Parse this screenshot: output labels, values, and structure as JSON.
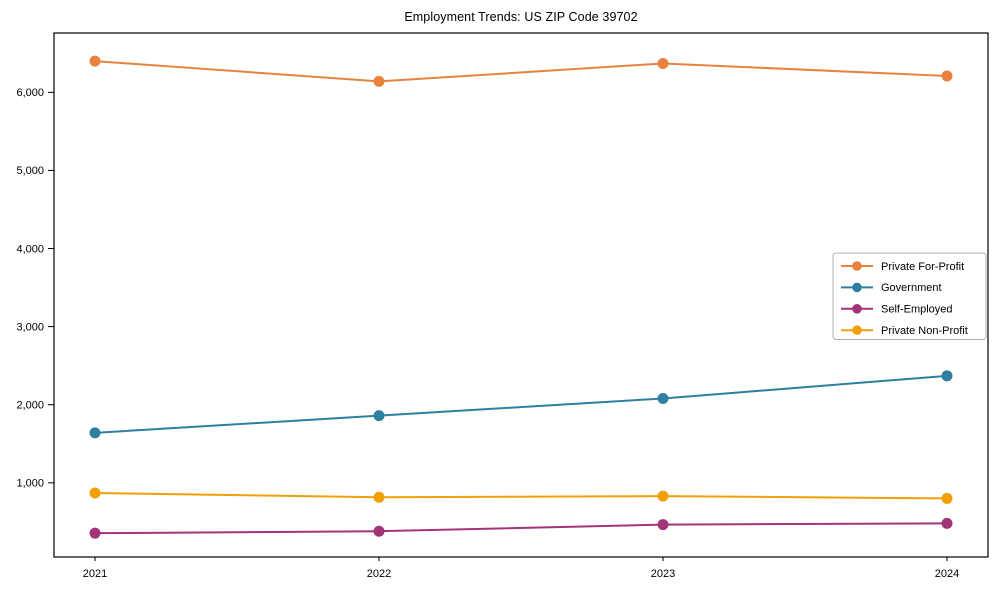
{
  "chart_data": {
    "type": "line",
    "title": "Employment Trends: US ZIP Code 39702",
    "x": [
      "2021",
      "2022",
      "2023",
      "2024"
    ],
    "series": [
      {
        "name": "Private For-Profit",
        "color": "#e8823e",
        "values": [
          6400,
          6140,
          6370,
          6210
        ]
      },
      {
        "name": "Government",
        "color": "#2e7fa0",
        "values": [
          1640,
          1860,
          2080,
          2370
        ]
      },
      {
        "name": "Self-Employed",
        "color": "#a33478",
        "values": [
          355,
          380,
          465,
          480
        ]
      },
      {
        "name": "Private Non-Profit",
        "color": "#f2a00a",
        "values": [
          870,
          815,
          830,
          800
        ]
      }
    ],
    "yticks": [
      1000,
      2000,
      3000,
      4000,
      5000,
      6000
    ],
    "ylim": [
      50,
      6760
    ],
    "xlabel": "",
    "ylabel": "",
    "grid": false,
    "legend_position": "right-middle",
    "axis_color": "#000000",
    "background": "#ffffff"
  }
}
